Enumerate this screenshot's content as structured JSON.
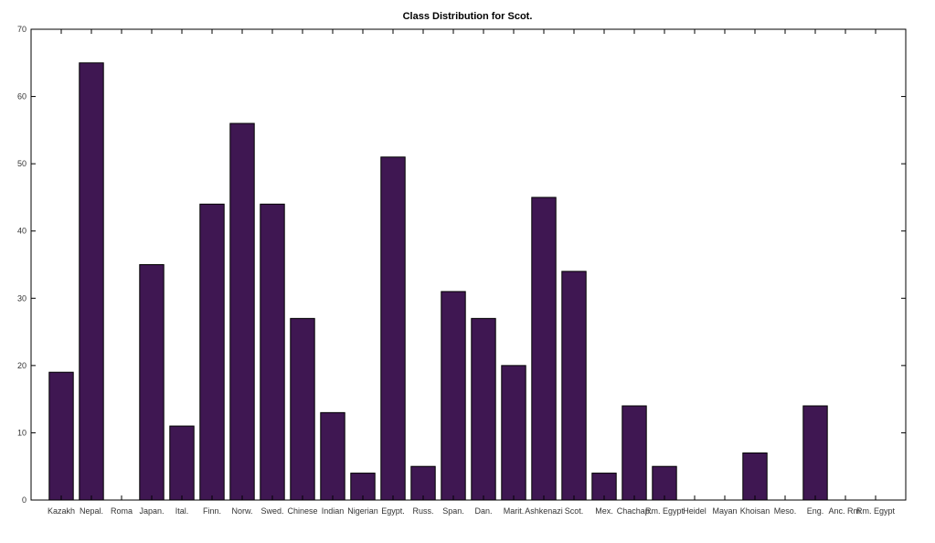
{
  "chart_data": {
    "type": "bar",
    "title": "Class Distribution for Scot.",
    "xlabel": "",
    "ylabel": "",
    "ylim": [
      0,
      70
    ],
    "yticks": [
      0,
      10,
      20,
      30,
      40,
      50,
      60,
      70
    ],
    "grid": false,
    "bar_color": "#3f1752",
    "categories": [
      "Kazakh",
      "Nepal.",
      "Roma",
      "Japan.",
      "Ital.",
      "Finn.",
      "Norw.",
      "Swed.",
      "Chinese",
      "Indian",
      "Nigerian",
      "Egypt.",
      "Russ.",
      "Span.",
      "Dan.",
      "Marit.",
      "Ashkenazi",
      "Scot.",
      "Mex.",
      "Chachap.",
      "Rm. Egypt",
      "Heidel",
      "Mayan",
      "Khoisan",
      "Meso.",
      "Eng.",
      "Anc. Rm.",
      "Rm. Egypt"
    ],
    "values": [
      19,
      65,
      0,
      35,
      11,
      44,
      56,
      44,
      27,
      13,
      4,
      51,
      5,
      31,
      27,
      20,
      45,
      34,
      4,
      14,
      5,
      0,
      0,
      7,
      0,
      14,
      0,
      0
    ]
  }
}
